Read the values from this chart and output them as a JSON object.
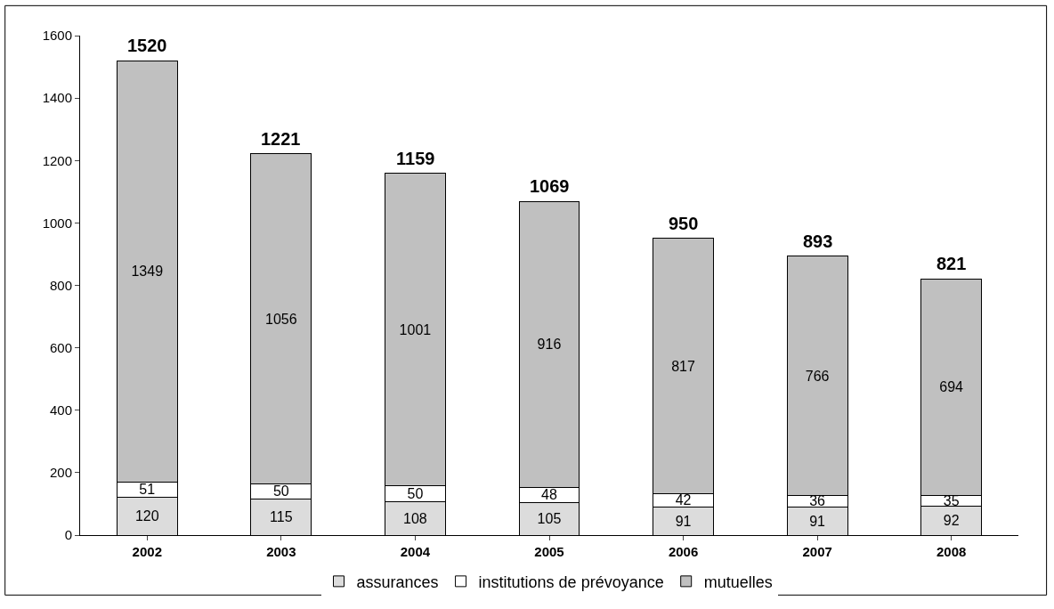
{
  "chart_data": {
    "type": "bar",
    "stacked": true,
    "categories": [
      "2002",
      "2003",
      "2004",
      "2005",
      "2006",
      "2007",
      "2008"
    ],
    "series": [
      {
        "name": "assurances",
        "color": "#dcdcdc",
        "values": [
          120,
          115,
          108,
          105,
          91,
          91,
          92
        ]
      },
      {
        "name": "institutions de prévoyance",
        "color": "#ffffff",
        "values": [
          51,
          50,
          50,
          48,
          42,
          36,
          35
        ]
      },
      {
        "name": "mutuelles",
        "color": "#c0c0c0",
        "values": [
          1349,
          1056,
          1001,
          916,
          817,
          766,
          694
        ]
      }
    ],
    "totals": [
      "1520",
      "1221",
      "1159",
      "1069",
      "950",
      "893",
      "821"
    ],
    "data_labels": true,
    "ylim": [
      0,
      1600
    ],
    "yticks": [
      0,
      200,
      400,
      600,
      800,
      1000,
      1200,
      1400,
      1600
    ],
    "legend": "bottom"
  }
}
